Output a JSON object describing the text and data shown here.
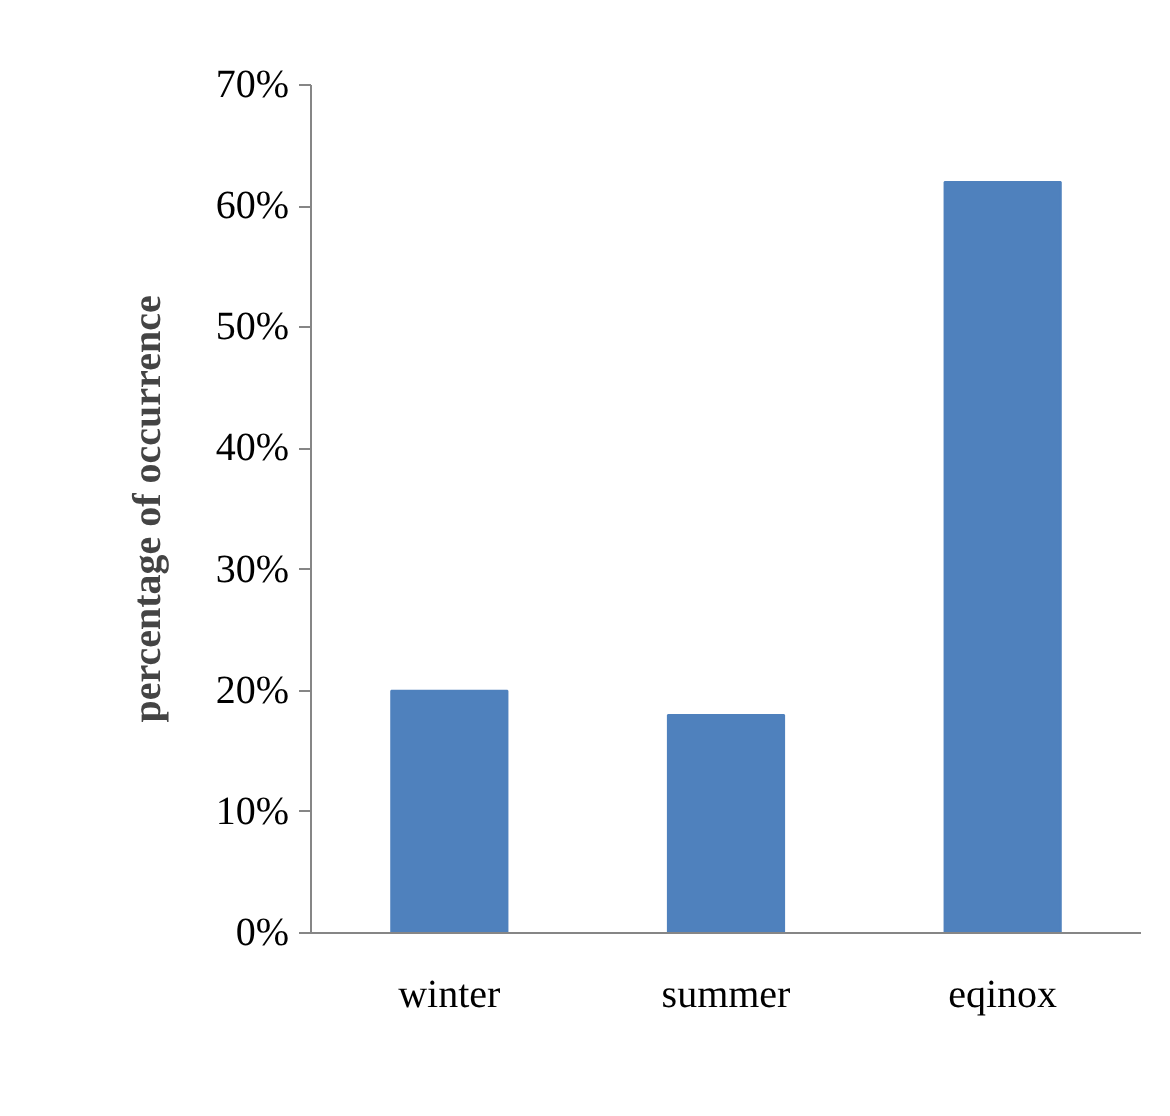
{
  "chart_data": {
    "type": "bar",
    "ylabel": "percentage of occurrence",
    "categories": [
      "winter",
      "summer",
      "eqinox"
    ],
    "values": [
      20,
      18,
      62
    ],
    "color": "#4f81bd",
    "ylim": [
      0,
      70
    ],
    "yticks": [
      {
        "value": 0,
        "label": "0%"
      },
      {
        "value": 10,
        "label": "10%"
      },
      {
        "value": 20,
        "label": "20%"
      },
      {
        "value": 30,
        "label": "30%"
      },
      {
        "value": 40,
        "label": "40%"
      },
      {
        "value": 50,
        "label": "50%"
      },
      {
        "value": 60,
        "label": "60%"
      },
      {
        "value": 70,
        "label": "70%"
      }
    ],
    "grid": false
  }
}
